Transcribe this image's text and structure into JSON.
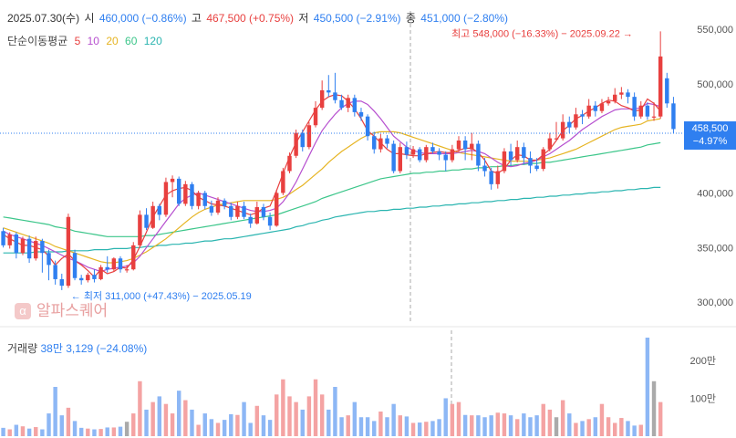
{
  "header": {
    "date": "2025.07.30(수)",
    "open_label": "시",
    "open_value": "460,000 (−0.86%)",
    "high_label": "고",
    "high_value": "467,500 (+0.75%)",
    "low_label": "저",
    "low_value": "450,500 (−2.91%)",
    "close_label": "종",
    "close_value": "451,000 (−2.80%)"
  },
  "moving_average": {
    "label": "단순이동평균",
    "periods": [
      {
        "label": "5",
        "color": "#e8403f"
      },
      {
        "label": "10",
        "color": "#b64fcf"
      },
      {
        "label": "20",
        "color": "#e6b422"
      },
      {
        "label": "60",
        "color": "#3cc68a"
      },
      {
        "label": "120",
        "color": "#2bb5b0"
      }
    ]
  },
  "annotations": {
    "max": "최고 548,000 (−16.33%) − 2025.09.22",
    "min": "최저 311,000 (+47.43%) − 2025.05.19"
  },
  "current_price": {
    "value": "458,500",
    "change": "−4.97%"
  },
  "volume_header": {
    "label": "거래량",
    "value": "38만 3,129 (−24.08%)"
  },
  "logo_text": "알파스퀘어",
  "logo_mark": "α",
  "colors": {
    "up": "#e8403f",
    "down": "#2f7ff0",
    "vol_up": "#f4a3a3",
    "vol_down": "#8db7f5",
    "vol_flat": "#aaaaaa"
  },
  "chart_data": {
    "type": "candlestick",
    "price_axis": {
      "min": 280000,
      "max": 560000,
      "ticks": [
        "550,000",
        "500,000",
        "450,000",
        "400,000",
        "350,000",
        "300,000"
      ],
      "tick_values": [
        550000,
        500000,
        450000,
        400000,
        350000,
        300000
      ]
    },
    "volume_axis": {
      "ticks": [
        "200만",
        "100만"
      ],
      "tick_values": [
        2000000,
        1000000
      ],
      "max": 2600000
    },
    "candles": [
      [
        365000,
        352000,
        368000,
        350000
      ],
      [
        352000,
        362000,
        364000,
        349000
      ],
      [
        362000,
        345000,
        364000,
        340000
      ],
      [
        345000,
        358000,
        360000,
        343000
      ],
      [
        358000,
        340000,
        361000,
        336000
      ],
      [
        340000,
        356000,
        360000,
        338000
      ],
      [
        356000,
        345000,
        358000,
        327000
      ],
      [
        345000,
        334000,
        348000,
        320000
      ],
      [
        334000,
        321000,
        338000,
        316000
      ],
      [
        321000,
        315000,
        326000,
        311000
      ],
      [
        315000,
        378000,
        381000,
        313000
      ],
      [
        345000,
        322000,
        348000,
        320000
      ],
      [
        322000,
        320000,
        325000,
        316000
      ],
      [
        320000,
        325000,
        327000,
        318000
      ],
      [
        325000,
        321000,
        330000,
        318000
      ],
      [
        321000,
        332000,
        334000,
        320000
      ],
      [
        332000,
        330000,
        342000,
        327000
      ],
      [
        330000,
        340000,
        341000,
        328000
      ],
      [
        340000,
        330000,
        342000,
        327000
      ],
      [
        330000,
        330000,
        334000,
        327000
      ],
      [
        330000,
        352000,
        355000,
        329000
      ],
      [
        352000,
        380000,
        384000,
        350000
      ],
      [
        380000,
        368000,
        386000,
        366000
      ],
      [
        368000,
        388000,
        392000,
        367000
      ],
      [
        388000,
        380000,
        390000,
        375000
      ],
      [
        380000,
        410000,
        414000,
        378000
      ],
      [
        410000,
        413000,
        416000,
        396000
      ],
      [
        413000,
        390000,
        415000,
        388000
      ],
      [
        390000,
        408000,
        411000,
        388000
      ],
      [
        408000,
        388000,
        410000,
        385000
      ],
      [
        388000,
        400000,
        402000,
        385000
      ],
      [
        400000,
        388000,
        402000,
        385000
      ],
      [
        388000,
        382000,
        393000,
        379000
      ],
      [
        382000,
        393000,
        396000,
        380000
      ],
      [
        393000,
        388000,
        395000,
        385000
      ],
      [
        388000,
        378000,
        391000,
        375000
      ],
      [
        378000,
        388000,
        392000,
        376000
      ],
      [
        388000,
        378000,
        392000,
        376000
      ],
      [
        378000,
        372000,
        381000,
        368000
      ],
      [
        372000,
        387000,
        392000,
        371000
      ],
      [
        387000,
        378000,
        390000,
        375000
      ],
      [
        378000,
        370000,
        382000,
        366000
      ],
      [
        370000,
        400000,
        403000,
        369000
      ],
      [
        400000,
        420000,
        423000,
        398000
      ],
      [
        420000,
        434000,
        437000,
        418000
      ],
      [
        434000,
        455000,
        458000,
        432000
      ],
      [
        455000,
        442000,
        458000,
        438000
      ],
      [
        442000,
        462000,
        465000,
        440000
      ],
      [
        462000,
        478000,
        484000,
        460000
      ],
      [
        478000,
        494000,
        503000,
        476000
      ],
      [
        494000,
        492000,
        508000,
        488000
      ],
      [
        492000,
        485000,
        510000,
        482000
      ],
      [
        485000,
        478000,
        490000,
        476000
      ],
      [
        478000,
        487000,
        490000,
        474000
      ],
      [
        487000,
        474000,
        490000,
        470000
      ],
      [
        474000,
        470000,
        478000,
        466000
      ],
      [
        470000,
        452000,
        472000,
        448000
      ],
      [
        452000,
        440000,
        456000,
        436000
      ],
      [
        440000,
        450000,
        454000,
        437000
      ],
      [
        450000,
        445000,
        453000,
        441000
      ],
      [
        445000,
        420000,
        448000,
        418000
      ],
      [
        420000,
        442000,
        446000,
        418000
      ],
      [
        442000,
        435000,
        447000,
        431000
      ],
      [
        435000,
        440000,
        443000,
        432000
      ],
      [
        440000,
        430000,
        442000,
        428000
      ],
      [
        430000,
        442000,
        444000,
        428000
      ],
      [
        442000,
        438000,
        446000,
        436000
      ],
      [
        438000,
        435000,
        441000,
        430000
      ],
      [
        435000,
        430000,
        438000,
        420000
      ],
      [
        430000,
        440000,
        444000,
        428000
      ],
      [
        440000,
        448000,
        452000,
        437000
      ],
      [
        448000,
        440000,
        452000,
        430000
      ],
      [
        440000,
        445000,
        455000,
        430000
      ],
      [
        445000,
        425000,
        448000,
        420000
      ],
      [
        425000,
        420000,
        432000,
        415000
      ],
      [
        420000,
        408000,
        423000,
        403000
      ],
      [
        408000,
        420000,
        425000,
        404000
      ],
      [
        420000,
        438000,
        441000,
        418000
      ],
      [
        438000,
        430000,
        445000,
        425000
      ],
      [
        430000,
        442000,
        448000,
        428000
      ],
      [
        442000,
        432000,
        446000,
        426000
      ],
      [
        432000,
        425000,
        438000,
        418000
      ],
      [
        425000,
        422000,
        432000,
        420000
      ],
      [
        422000,
        440000,
        442000,
        420000
      ],
      [
        440000,
        450000,
        455000,
        438000
      ],
      [
        450000,
        450000,
        465000,
        448000
      ],
      [
        450000,
        465000,
        472000,
        448000
      ],
      [
        465000,
        460000,
        470000,
        455000
      ],
      [
        460000,
        472000,
        478000,
        458000
      ],
      [
        472000,
        470000,
        476000,
        463000
      ],
      [
        470000,
        480000,
        486000,
        468000
      ],
      [
        480000,
        475000,
        484000,
        470000
      ],
      [
        475000,
        482000,
        486000,
        473000
      ],
      [
        482000,
        484000,
        488000,
        480000
      ],
      [
        484000,
        490000,
        496000,
        482000
      ],
      [
        490000,
        492000,
        497000,
        486000
      ],
      [
        492000,
        488000,
        495000,
        482000
      ],
      [
        488000,
        470000,
        492000,
        466000
      ],
      [
        470000,
        480000,
        484000,
        468000
      ],
      [
        480000,
        470000,
        483000,
        467000
      ],
      [
        470000,
        470000,
        483000,
        466000
      ],
      [
        470000,
        525000,
        548000,
        468000
      ],
      [
        505000,
        482000,
        510000,
        478000
      ],
      [
        482000,
        458500,
        488000,
        455000
      ]
    ],
    "ma": {
      "5": [
        362000,
        358000,
        355000,
        352000,
        352000,
        350000,
        348000,
        342000,
        334000,
        340000,
        344000,
        338000,
        334000,
        329000,
        323000,
        330000,
        326000,
        328000,
        332000,
        331000,
        339000,
        351000,
        364000,
        378000,
        388000,
        398000,
        402000,
        404000,
        405000,
        402000,
        396000,
        393000,
        390000,
        389000,
        388000,
        386000,
        384000,
        382000,
        380000,
        382000,
        386000,
        388000,
        402000,
        418000,
        433000,
        446000,
        456000,
        466000,
        476000,
        484000,
        488000,
        490000,
        489000,
        484000,
        477000,
        468000,
        457000,
        452000,
        446000,
        440000,
        436000,
        436000,
        435000,
        434000,
        434000,
        436000,
        437000,
        438000,
        437000,
        437000,
        439000,
        441000,
        441000,
        437000,
        430000,
        420000,
        418000,
        422000,
        430000,
        435000,
        434000,
        430000,
        430000,
        435000,
        440000,
        448000,
        457000,
        462000,
        468000,
        471000,
        475000,
        478000,
        482000,
        485000,
        484000,
        480000,
        478000,
        475000,
        476000,
        486000,
        482000,
        475000
      ],
      "10": [
        365000,
        362000,
        360000,
        358000,
        356000,
        354000,
        352000,
        349000,
        346000,
        343000,
        340000,
        338000,
        335000,
        332000,
        330000,
        328000,
        330000,
        331000,
        332000,
        333000,
        336000,
        342000,
        350000,
        358000,
        366000,
        374000,
        382000,
        390000,
        395000,
        398000,
        400000,
        398000,
        396000,
        394000,
        392000,
        390000,
        388000,
        386000,
        384000,
        383000,
        383000,
        384000,
        386000,
        392000,
        400000,
        410000,
        422000,
        434000,
        446000,
        457000,
        465000,
        472000,
        478000,
        482000,
        484000,
        484000,
        481000,
        475000,
        468000,
        460000,
        452000,
        447000,
        442000,
        439000,
        437000,
        436000,
        436000,
        436000,
        436000,
        436000,
        437000,
        438000,
        439000,
        438000,
        436000,
        432000,
        428000,
        425000,
        424000,
        425000,
        427000,
        428000,
        430000,
        433000,
        436000,
        440000,
        444000,
        448000,
        453000,
        458000,
        462000,
        466000,
        470000,
        473000,
        476000,
        477000,
        477000,
        477000,
        478000,
        482000,
        481000,
        479000
      ],
      "20": [
        368000,
        366000,
        364000,
        362000,
        360000,
        358000,
        356000,
        354000,
        351000,
        349000,
        347000,
        345000,
        343000,
        341000,
        339000,
        337000,
        336000,
        336000,
        337000,
        338000,
        340000,
        343000,
        346000,
        350000,
        354000,
        358000,
        363000,
        368000,
        373000,
        378000,
        382000,
        385000,
        387000,
        389000,
        390000,
        391000,
        392000,
        393000,
        393000,
        393000,
        393000,
        393000,
        394000,
        396000,
        399000,
        403000,
        407000,
        412000,
        417000,
        422000,
        428000,
        433000,
        438000,
        442000,
        446000,
        450000,
        453000,
        455000,
        456000,
        456000,
        456000,
        455000,
        453000,
        451000,
        449000,
        447000,
        445000,
        443000,
        441000,
        439000,
        437000,
        436000,
        435000,
        434000,
        433000,
        432000,
        431000,
        430000,
        429000,
        429000,
        429000,
        429000,
        430000,
        431000,
        432000,
        434000,
        436000,
        438000,
        440000,
        443000,
        446000,
        449000,
        452000,
        455000,
        458000,
        460000,
        461000,
        462000,
        463000,
        466000,
        467000,
        468000
      ],
      "60": [
        378000,
        377000,
        376000,
        375000,
        374000,
        373000,
        372000,
        371000,
        369000,
        368000,
        367000,
        365000,
        364000,
        363000,
        362000,
        361000,
        360000,
        360000,
        360000,
        360000,
        360000,
        360000,
        361000,
        361000,
        362000,
        363000,
        364000,
        365000,
        366000,
        367000,
        368000,
        369000,
        370000,
        371000,
        372000,
        373000,
        374000,
        375000,
        376000,
        377000,
        378000,
        379000,
        380000,
        382000,
        384000,
        386000,
        388000,
        390000,
        392000,
        395000,
        397000,
        399000,
        401000,
        403000,
        405000,
        407000,
        409000,
        411000,
        413000,
        414000,
        415000,
        416000,
        417000,
        418000,
        418000,
        419000,
        419000,
        420000,
        420000,
        421000,
        421000,
        422000,
        422000,
        423000,
        423000,
        424000,
        424000,
        425000,
        425000,
        426000,
        426000,
        427000,
        427000,
        428000,
        428000,
        429000,
        430000,
        431000,
        432000,
        433000,
        434000,
        435000,
        436000,
        437000,
        438000,
        439000,
        440000,
        441000,
        442000,
        444000,
        445000,
        446000
      ],
      "120": [
        345000,
        345000,
        345000,
        345000,
        345000,
        346000,
        346000,
        346000,
        346000,
        346000,
        347000,
        347000,
        347000,
        347000,
        348000,
        348000,
        348000,
        349000,
        349000,
        349000,
        350000,
        350000,
        351000,
        351000,
        352000,
        352000,
        353000,
        353000,
        354000,
        354000,
        355000,
        356000,
        356000,
        357000,
        358000,
        358000,
        359000,
        360000,
        361000,
        362000,
        363000,
        364000,
        365000,
        366000,
        367000,
        369000,
        370000,
        372000,
        373000,
        375000,
        376000,
        378000,
        379000,
        380000,
        381000,
        382000,
        383000,
        383000,
        384000,
        384000,
        385000,
        385000,
        386000,
        386000,
        387000,
        387000,
        388000,
        388000,
        389000,
        389000,
        390000,
        390000,
        391000,
        391000,
        392000,
        392000,
        393000,
        393000,
        394000,
        394000,
        395000,
        395000,
        396000,
        396000,
        397000,
        397000,
        398000,
        398000,
        399000,
        399000,
        400000,
        400000,
        401000,
        401000,
        402000,
        402000,
        403000,
        403000,
        404000,
        404000,
        405000,
        405000
      ]
    },
    "volumes": [
      220000,
      180000,
      300000,
      260000,
      200000,
      240000,
      180000,
      600000,
      1300000,
      550000,
      750000,
      400000,
      220000,
      200000,
      180000,
      190000,
      230000,
      230000,
      250000,
      380000,
      600000,
      1450000,
      700000,
      900000,
      1050000,
      850000,
      600000,
      1200000,
      950000,
      700000,
      300000,
      600000,
      450000,
      350000,
      430000,
      580000,
      560000,
      900000,
      350000,
      800000,
      550000,
      430000,
      1100000,
      1500000,
      1050000,
      900000,
      700000,
      1050000,
      1500000,
      1100000,
      700000,
      1300000,
      500000,
      550000,
      900000,
      500000,
      500000,
      400000,
      650000,
      500000,
      850000,
      550000,
      520000,
      350000,
      360000,
      380000,
      400000,
      450000,
      1000000,
      850000,
      900000,
      560000,
      550000,
      550000,
      500000,
      550000,
      620000,
      600000,
      550000,
      450000,
      600000,
      500000,
      550000,
      850000,
      700000,
      500000,
      950000,
      600000,
      350000,
      400000,
      450000,
      500000,
      850000,
      500000,
      350000,
      480000,
      400000,
      280000,
      300000,
      2600000,
      1450000,
      900000
    ]
  }
}
